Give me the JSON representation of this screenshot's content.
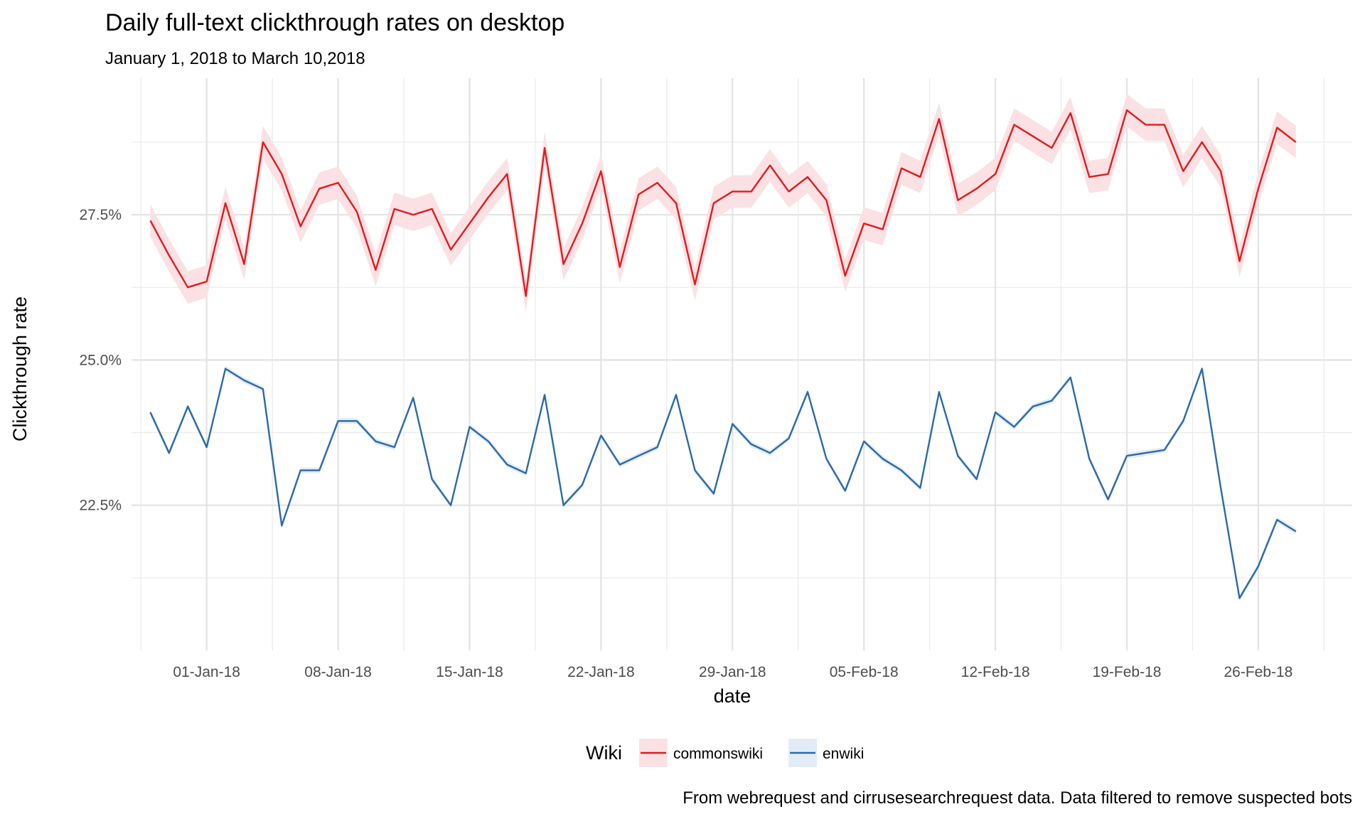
{
  "chart_data": {
    "type": "line",
    "title": "Daily full-text clickthrough rates on desktop",
    "subtitle": "January 1, 2018 to March 10,2018",
    "xlabel": "date",
    "ylabel": "Clickthrough rate",
    "caption": "From webrequest and cirrusesearchrequest data. Data filtered to remove suspected bots",
    "legend_title": "Wiki",
    "legend_position": "bottom",
    "grid": true,
    "x_start": "2017-12-29",
    "x_end": "2018-03-01",
    "xlim": [
      "2017-12-28",
      "2018-03-03"
    ],
    "ylim": [
      20.0,
      29.85
    ],
    "x_ticks": [
      "2018-01-01",
      "2018-01-08",
      "2018-01-15",
      "2018-01-22",
      "2018-01-29",
      "2018-02-05",
      "2018-02-12",
      "2018-02-19",
      "2018-02-26"
    ],
    "x_tick_labels": [
      "01-Jan-18",
      "08-Jan-18",
      "15-Jan-18",
      "22-Jan-18",
      "29-Jan-18",
      "05-Feb-18",
      "12-Feb-18",
      "19-Feb-18",
      "26-Feb-18"
    ],
    "y_ticks": [
      22.5,
      25.0,
      27.5
    ],
    "y_tick_labels": [
      "22.5%",
      "25.0%",
      "27.5%"
    ],
    "series": [
      {
        "name": "commonswiki",
        "color": "#e41a1c",
        "band_color": "#fbe1e4",
        "band": 0.28,
        "values": [
          27.4,
          26.8,
          26.25,
          26.35,
          27.7,
          26.65,
          28.75,
          28.2,
          27.3,
          27.95,
          28.05,
          27.55,
          26.55,
          27.6,
          27.5,
          27.6,
          26.9,
          27.35,
          27.8,
          28.2,
          26.1,
          28.65,
          26.65,
          27.35,
          28.25,
          26.6,
          27.85,
          28.05,
          27.7,
          26.3,
          27.7,
          27.9,
          27.9,
          28.35,
          27.9,
          28.15,
          27.75,
          26.45,
          27.35,
          27.25,
          28.3,
          28.15,
          29.15,
          27.75,
          27.95,
          28.2,
          29.05,
          28.85,
          28.65,
          29.25,
          28.15,
          28.2,
          29.3,
          29.05,
          29.05,
          28.25,
          28.75,
          28.25,
          26.7,
          27.95,
          29.0,
          28.75
        ]
      },
      {
        "name": "enwiki",
        "color": "#2b6aa8",
        "band_color": "#e3ecf6",
        "band": 0.05,
        "values": [
          24.1,
          23.4,
          24.2,
          23.5,
          24.85,
          24.65,
          24.5,
          22.15,
          23.1,
          23.1,
          23.95,
          23.95,
          23.6,
          23.5,
          24.35,
          22.95,
          22.5,
          23.85,
          23.6,
          23.2,
          23.05,
          24.4,
          22.5,
          22.85,
          23.7,
          23.2,
          23.35,
          23.5,
          24.4,
          23.1,
          22.7,
          23.9,
          23.55,
          23.4,
          23.65,
          24.45,
          23.3,
          22.75,
          23.6,
          23.3,
          23.1,
          22.8,
          24.45,
          23.35,
          22.95,
          24.1,
          23.85,
          24.2,
          24.3,
          24.7,
          23.3,
          22.6,
          23.35,
          23.4,
          23.45,
          23.95,
          24.85,
          22.8,
          20.9,
          21.45,
          22.25,
          22.05
        ]
      }
    ]
  }
}
